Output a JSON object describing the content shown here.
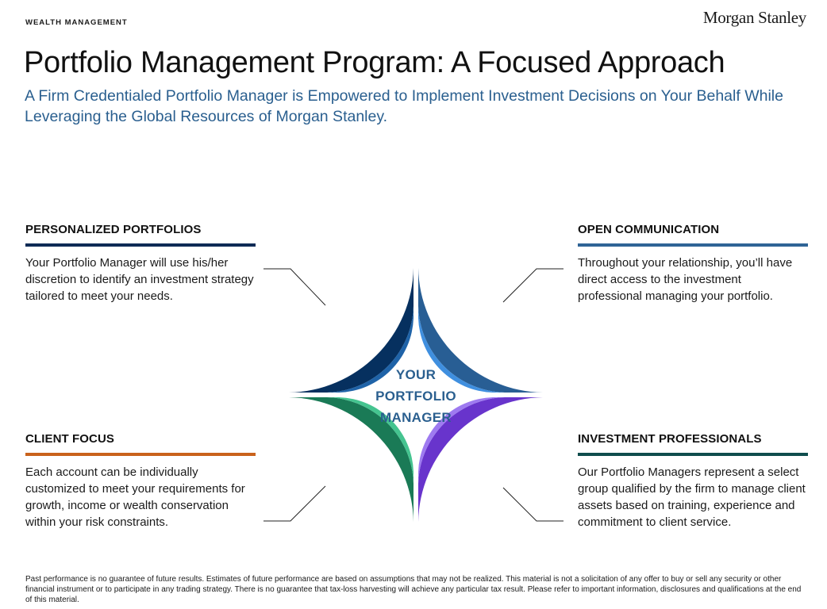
{
  "header": {
    "eyebrow": "WEALTH MANAGEMENT",
    "logo": "Morgan Stanley",
    "title": "Portfolio Management Program: A Focused Approach",
    "subtitle": "A Firm Credentialed Portfolio Manager is Empowered to Implement Investment Decisions on Your Behalf While Leveraging the Global Resources of Morgan Stanley."
  },
  "center": {
    "line1": "YOUR",
    "line2": "PORTFOLIO",
    "line3": "MANAGER"
  },
  "sections": {
    "top_left": {
      "title": "PERSONALIZED PORTFOLIOS",
      "body": "Your Portfolio Manager will use his/her discretion to identify an investment strategy tailored to meet your needs.",
      "accent": "#0e2a55"
    },
    "top_right": {
      "title": "OPEN COMMUNICATION",
      "body": "Throughout your relationship, you’ll have direct access to the investment professional managing your portfolio.",
      "accent": "#2f6496"
    },
    "bottom_left": {
      "title": "CLIENT FOCUS",
      "body": "Each account can be individually customized to meet your requirements for growth, income or wealth conservation within your risk constraints.",
      "accent": "#c9621c"
    },
    "bottom_right": {
      "title": "INVESTMENT PROFESSIONALS",
      "body": "Our Portfolio Managers represent a select group qualified by the firm to manage client assets based on training, experience and commitment to client service.",
      "accent": "#0f4d4d"
    }
  },
  "ring_colors": {
    "top_left_outer": "#06305f",
    "top_left_inner": "#1f63a8",
    "top_right_outer": "#285e94",
    "top_right_inner": "#3f8fdf",
    "bottom_left_outer": "#1a7a56",
    "bottom_left_inner": "#45c490",
    "bottom_right_outer": "#6834cc",
    "bottom_right_inner": "#9e7af0",
    "connector": "#222222"
  },
  "footnote": "Past performance is no guarantee of future results. Estimates of future performance are based on assumptions that may not be realized. This material is not a solicitation of any offer to buy or sell any security or other financial instrument or to participate in any trading strategy. There is no guarantee that tax-loss harvesting will achieve any particular tax result. Please refer to important information, disclosures and qualifications at the end of this material."
}
